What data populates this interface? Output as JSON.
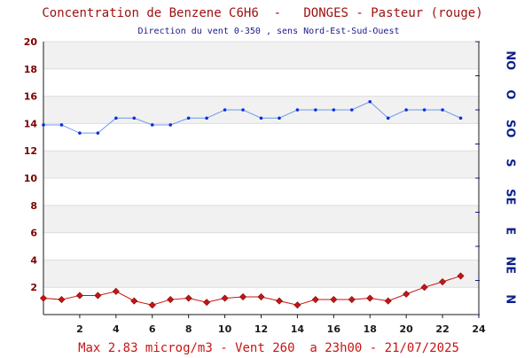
{
  "chart_data": {
    "type": "line",
    "title": "Concentration de Benzene C6H6  -   DONGES - Pasteur (rouge)",
    "subtitle": "Direction du vent 0-350 , sens Nord-Est-Sud-Ouest",
    "footer": "Max 2.83 microg/m3 - Vent 260  a 23h00 - 21/07/2025",
    "xlim": [
      0,
      24
    ],
    "ylim": [
      0,
      20
    ],
    "x_ticks": [
      "2",
      "4",
      "6",
      "8",
      "10",
      "12",
      "14",
      "16",
      "18",
      "20",
      "22",
      "24"
    ],
    "y_ticks": [
      "2",
      "4",
      "6",
      "8",
      "10",
      "12",
      "14",
      "16",
      "18",
      "20"
    ],
    "right_axis_labels": [
      "NO",
      "O",
      "SO",
      "S",
      "SE",
      "E",
      "NE",
      "N"
    ],
    "right_axis_ticks": [
      0,
      45,
      90,
      135,
      180,
      225,
      270,
      315,
      360
    ],
    "right_axis_range": [
      0,
      360
    ],
    "grid": "horizontal bands",
    "series": [
      {
        "color": "#c81414",
        "marker": "diamond",
        "x": [
          0,
          1,
          2,
          3,
          4,
          5,
          6,
          7,
          8,
          9,
          10,
          11,
          12,
          13,
          14,
          15,
          16,
          17,
          18,
          19,
          20,
          21,
          22,
          23
        ],
        "values": [
          1.2,
          1.1,
          1.4,
          1.4,
          1.7,
          1.0,
          0.7,
          1.1,
          1.2,
          0.9,
          1.2,
          1.3,
          1.3,
          1.0,
          0.7,
          1.1,
          1.1,
          1.1,
          1.2,
          1.0,
          1.5,
          2.0,
          2.4,
          2.83
        ]
      },
      {
        "color": "#0a2ee0",
        "line_color": "#6f9ae8",
        "marker": "dot",
        "x": [
          0,
          1,
          2,
          3,
          4,
          5,
          6,
          7,
          8,
          9,
          10,
          11,
          12,
          13,
          14,
          15,
          16,
          17,
          18,
          19,
          20,
          21,
          22,
          23
        ],
        "values": [
          13.9,
          13.9,
          13.3,
          13.3,
          14.4,
          14.4,
          13.9,
          13.9,
          14.4,
          14.4,
          15.0,
          15.0,
          14.4,
          14.4,
          15.0,
          15.0,
          15.0,
          15.0,
          15.6,
          14.4,
          15.0,
          15.0,
          15.0,
          14.4
        ]
      }
    ]
  }
}
